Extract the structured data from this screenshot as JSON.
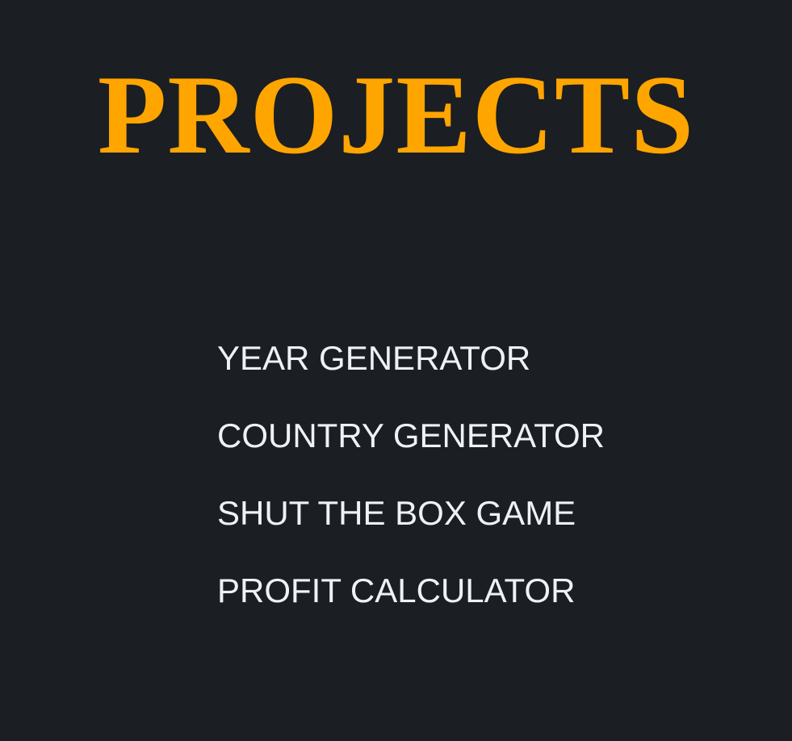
{
  "header": {
    "title": "PROJECTS"
  },
  "projects": [
    {
      "label": "YEAR GENERATOR"
    },
    {
      "label": "COUNTRY GENERATOR"
    },
    {
      "label": "SHUT THE BOX GAME"
    },
    {
      "label": "PROFIT CALCULATOR"
    }
  ],
  "colors": {
    "background": "#1b1e23",
    "title": "#ffa500",
    "link": "#eef1f5"
  }
}
